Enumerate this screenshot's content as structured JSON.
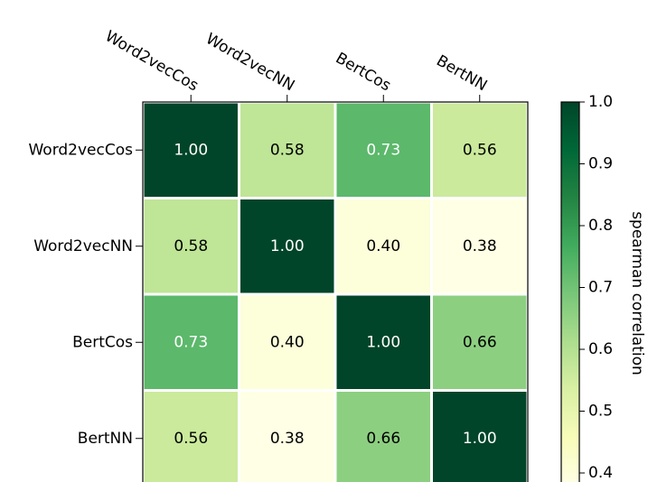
{
  "chart_data": {
    "type": "heatmap",
    "x_categories": [
      "Word2vecCos",
      "Word2vecNN",
      "BertCos",
      "BertNN"
    ],
    "y_categories": [
      "Word2vecCos",
      "Word2vecNN",
      "BertCos",
      "BertNN"
    ],
    "values": [
      [
        1.0,
        0.58,
        0.73,
        0.56
      ],
      [
        0.58,
        1.0,
        0.4,
        0.38
      ],
      [
        0.73,
        0.4,
        1.0,
        0.66
      ],
      [
        0.56,
        0.38,
        0.66,
        1.0
      ]
    ],
    "value_labels": [
      [
        "1.00",
        "0.58",
        "0.73",
        "0.56"
      ],
      [
        "0.58",
        "1.00",
        "0.40",
        "0.38"
      ],
      [
        "0.73",
        "0.40",
        "1.00",
        "0.66"
      ],
      [
        "0.56",
        "0.38",
        "0.66",
        "1.00"
      ]
    ],
    "colormap": [
      "#ffffe5",
      "#f7fcb9",
      "#d9f0a3",
      "#addd8e",
      "#78c679",
      "#41ab5d",
      "#238443",
      "#006837",
      "#004529"
    ],
    "colorbar_label": "spearman correlation",
    "clim": [
      0.38,
      1.0
    ],
    "colorbar_ticks": [
      0.4,
      0.5,
      0.6,
      0.7,
      0.8,
      0.9,
      {
        "value": 1.0,
        "label": "1.0"
      }
    ]
  }
}
